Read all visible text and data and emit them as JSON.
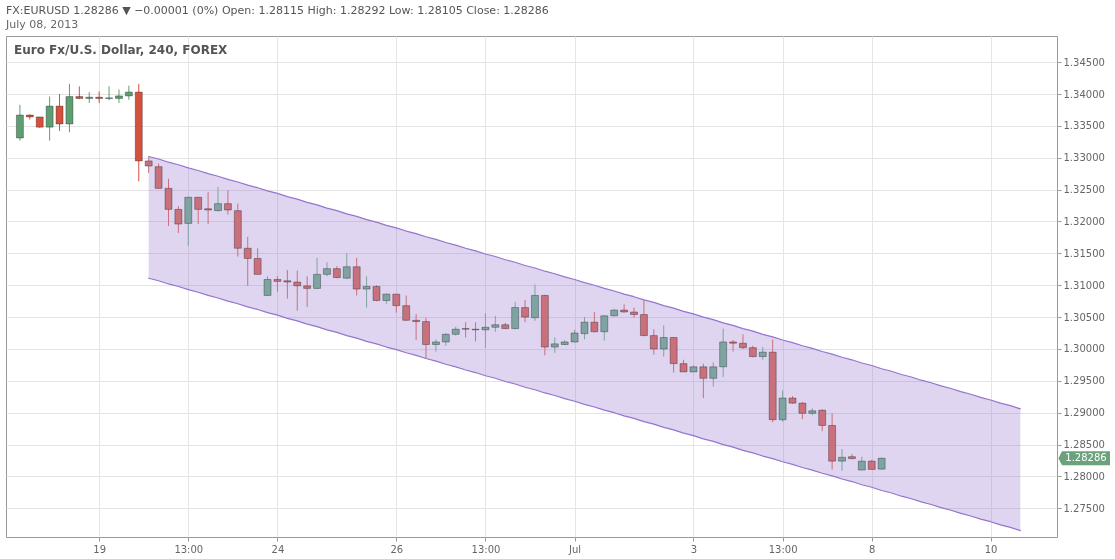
{
  "chart_data": {
    "type": "candlestick",
    "title": "FX:EURUSD 1.28286 ▼ −0.00001 (0%) Open: 1.28115 High: 1.28292 Low: 1.28105 Close: 1.28286",
    "subtitle": "July 08, 2013",
    "annotations": [
      "Euro Fx/U.S. Dollar, 240, FOREX",
      "1.28286"
    ],
    "categories": [
      null,
      null,
      null,
      null,
      null,
      null,
      null,
      null,
      "19",
      null,
      null,
      null,
      null,
      null,
      null,
      null,
      null,
      "13:00",
      null,
      null,
      null,
      null,
      null,
      null,
      null,
      null,
      "24",
      null,
      null,
      null,
      null,
      null,
      null,
      null,
      null,
      null,
      null,
      null,
      "26",
      null,
      null,
      null,
      null,
      null,
      null,
      null,
      null,
      "13:00",
      null,
      null,
      null,
      null,
      null,
      null,
      null,
      null,
      "Jul",
      null,
      null,
      null,
      null,
      null,
      null,
      null,
      null,
      null,
      null,
      null,
      "3",
      null,
      null,
      null,
      null,
      null,
      null,
      null,
      null,
      "13:00",
      null,
      null,
      null,
      null,
      null,
      null,
      null,
      null,
      "8",
      null,
      null,
      null,
      null,
      null,
      null,
      null,
      null,
      null,
      null,
      null,
      "10",
      null,
      null,
      null,
      null,
      null
    ],
    "ohlc": [
      [
        1.3331,
        1.3383,
        1.3327,
        1.3367
      ],
      [
        1.3367,
        1.3368,
        1.336,
        1.3364
      ],
      [
        1.3364,
        1.3364,
        1.3347,
        1.3348
      ],
      [
        1.3348,
        1.3396,
        1.3327,
        1.3381
      ],
      [
        1.3381,
        1.34,
        1.3342,
        1.3353
      ],
      [
        1.3353,
        1.3416,
        1.334,
        1.3396
      ],
      [
        1.3396,
        1.3412,
        1.3392,
        1.3393
      ],
      [
        1.3393,
        1.3403,
        1.3386,
        1.3395
      ],
      [
        1.3395,
        1.3404,
        1.3386,
        1.3393
      ],
      [
        1.3393,
        1.3412,
        1.339,
        1.3394
      ],
      [
        1.3393,
        1.3407,
        1.3386,
        1.3397
      ],
      [
        1.3397,
        1.3413,
        1.3391,
        1.3403
      ],
      [
        1.3403,
        1.3416,
        1.3263,
        1.3295
      ],
      [
        1.3295,
        1.3301,
        1.3276,
        1.3287
      ],
      [
        1.3286,
        1.3291,
        1.3251,
        1.3252
      ],
      [
        1.3252,
        1.3267,
        1.3193,
        1.3219
      ],
      [
        1.3219,
        1.3224,
        1.3182,
        1.3196
      ],
      [
        1.3197,
        1.3238,
        1.3162,
        1.3238
      ],
      [
        1.3238,
        1.3238,
        1.3196,
        1.3219
      ],
      [
        1.322,
        1.3246,
        1.3196,
        1.3218
      ],
      [
        1.3217,
        1.3254,
        1.3216,
        1.3228
      ],
      [
        1.3228,
        1.3249,
        1.3211,
        1.3218
      ],
      [
        1.3217,
        1.3228,
        1.3145,
        1.3158
      ],
      [
        1.3158,
        1.3176,
        1.3099,
        1.3142
      ],
      [
        1.3142,
        1.3158,
        1.3117,
        1.3117
      ],
      [
        1.3084,
        1.3114,
        1.3083,
        1.3109
      ],
      [
        1.3109,
        1.3114,
        1.309,
        1.3106
      ],
      [
        1.3107,
        1.3124,
        1.3079,
        1.3105
      ],
      [
        1.3105,
        1.3123,
        1.306,
        1.3099
      ],
      [
        1.3099,
        1.3114,
        1.3066,
        1.3095
      ],
      [
        1.3095,
        1.3143,
        1.3094,
        1.3117
      ],
      [
        1.3117,
        1.3136,
        1.3114,
        1.3126
      ],
      [
        1.3126,
        1.313,
        1.3111,
        1.3112
      ],
      [
        1.3111,
        1.315,
        1.311,
        1.3129
      ],
      [
        1.3129,
        1.3143,
        1.3084,
        1.3094
      ],
      [
        1.3094,
        1.3114,
        1.3065,
        1.3098
      ],
      [
        1.3098,
        1.31,
        1.3075,
        1.3076
      ],
      [
        1.3076,
        1.3087,
        1.3071,
        1.3086
      ],
      [
        1.3086,
        1.3086,
        1.3057,
        1.3068
      ],
      [
        1.3068,
        1.3084,
        1.3044,
        1.3045
      ],
      [
        1.3045,
        1.3055,
        1.3014,
        1.3043
      ],
      [
        1.3043,
        1.3049,
        1.2985,
        1.3007
      ],
      [
        1.3007,
        1.3015,
        1.2996,
        1.3011
      ],
      [
        1.3011,
        1.3025,
        1.3005,
        1.3023
      ],
      [
        1.3023,
        1.3035,
        1.3021,
        1.3031
      ],
      [
        1.3032,
        1.3042,
        1.3018,
        1.3031
      ],
      [
        1.3031,
        1.3042,
        1.3012,
        1.303
      ],
      [
        1.303,
        1.3056,
        1.3002,
        1.3034
      ],
      [
        1.3034,
        1.3052,
        1.3027,
        1.3038
      ],
      [
        1.3038,
        1.3041,
        1.3031,
        1.3032
      ],
      [
        1.3032,
        1.3074,
        1.3031,
        1.3065
      ],
      [
        1.3065,
        1.3077,
        1.3042,
        1.305
      ],
      [
        1.3049,
        1.3101,
        1.3044,
        1.3084
      ],
      [
        1.3084,
        1.3085,
        1.299,
        1.3003
      ],
      [
        1.3003,
        1.3018,
        1.2994,
        1.3008
      ],
      [
        1.3007,
        1.3014,
        1.3006,
        1.3011
      ],
      [
        1.3011,
        1.303,
        1.301,
        1.3025
      ],
      [
        1.3024,
        1.305,
        1.3015,
        1.3042
      ],
      [
        1.3042,
        1.3058,
        1.3026,
        1.3027
      ],
      [
        1.3027,
        1.3053,
        1.3013,
        1.3052
      ],
      [
        1.3052,
        1.3063,
        1.3051,
        1.3061
      ],
      [
        1.3061,
        1.307,
        1.3057,
        1.3058
      ],
      [
        1.3058,
        1.3065,
        1.3049,
        1.3054
      ],
      [
        1.3054,
        1.3077,
        1.302,
        1.3021
      ],
      [
        1.3021,
        1.3031,
        1.2991,
        1.3
      ],
      [
        1.3,
        1.3037,
        1.2988,
        1.3018
      ],
      [
        1.3018,
        1.3018,
        1.2963,
        1.2977
      ],
      [
        1.2977,
        1.2983,
        1.2964,
        1.2964
      ],
      [
        1.2964,
        1.2974,
        1.2964,
        1.2972
      ],
      [
        1.2972,
        1.2977,
        1.2923,
        1.2954
      ],
      [
        1.2954,
        1.2979,
        1.2941,
        1.2972
      ],
      [
        1.2972,
        1.3032,
        1.2956,
        1.3011
      ],
      [
        1.3011,
        1.3014,
        1.2996,
        1.3009
      ],
      [
        1.3009,
        1.3023,
        1.3,
        1.3002
      ],
      [
        1.3002,
        1.3005,
        1.2987,
        1.2988
      ],
      [
        1.2988,
        1.3003,
        1.2983,
        1.2995
      ],
      [
        1.2995,
        1.3015,
        1.2885,
        1.2889
      ],
      [
        1.2889,
        1.2935,
        1.2886,
        1.2923
      ],
      [
        1.2923,
        1.2926,
        1.2914,
        1.2915
      ],
      [
        1.2915,
        1.2917,
        1.289,
        1.2899
      ],
      [
        1.2899,
        1.2907,
        1.2896,
        1.2903
      ],
      [
        1.2904,
        1.2905,
        1.2871,
        1.288
      ],
      [
        1.288,
        1.2899,
        1.2811,
        1.2824
      ],
      [
        1.2824,
        1.2843,
        1.2809,
        1.283
      ],
      [
        1.2831,
        1.2835,
        1.2827,
        1.2828
      ],
      [
        1.281,
        1.2831,
        1.281,
        1.2824
      ],
      [
        1.2824,
        1.2826,
        1.2811,
        1.2811
      ],
      [
        1.28115,
        1.28292,
        1.28105,
        1.28286
      ],
      null,
      null,
      null,
      null,
      null,
      null,
      null,
      null,
      null,
      null,
      null,
      null,
      null,
      null,
      null,
      null
    ],
    "colors": [
      "#5e9e72",
      "#d6503e",
      "#d6503e",
      "#5e9e72",
      "#d6503e",
      "#5e9e72",
      "#d6503e",
      "#5e9e72",
      "#d6503e",
      "#5e9e72",
      "#5e9e72",
      "#5e9e72",
      "#d6503e",
      "#c8707c",
      "#c8707c",
      "#c8707c",
      "#c8707c",
      "#7fa3a1",
      "#c8707c",
      "#c8707c",
      "#7fa3a1",
      "#c8707c",
      "#c8707c",
      "#c8707c",
      "#c8707c",
      "#7fa3a1",
      "#c8707c",
      "#c8707c",
      "#c8707c",
      "#c8707c",
      "#7fa3a1",
      "#7fa3a1",
      "#c8707c",
      "#7fa3a1",
      "#c8707c",
      "#7fa3a1",
      "#c8707c",
      "#7fa3a1",
      "#c8707c",
      "#c8707c",
      "#c8707c",
      "#c8707c",
      "#7fa3a1",
      "#7fa3a1",
      "#7fa3a1",
      "#c8707c",
      "#c8707c",
      "#7fa3a1",
      "#7fa3a1",
      "#c8707c",
      "#7fa3a1",
      "#c8707c",
      "#7fa3a1",
      "#c8707c",
      "#7fa3a1",
      "#7fa3a1",
      "#7fa3a1",
      "#7fa3a1",
      "#c8707c",
      "#7fa3a1",
      "#7fa3a1",
      "#c8707c",
      "#c8707c",
      "#c8707c",
      "#c8707c",
      "#7fa3a1",
      "#c8707c",
      "#c8707c",
      "#7fa3a1",
      "#c8707c",
      "#7fa3a1",
      "#7fa3a1",
      "#c8707c",
      "#c8707c",
      "#c8707c",
      "#7fa3a1",
      "#c8707c",
      "#7fa3a1",
      "#c8707c",
      "#c8707c",
      "#7fa3a1",
      "#c8707c",
      "#c8707c",
      "#7fa3a1",
      "#c8707c",
      "#7fa3a1",
      "#c8707c",
      "#7fa3a1",
      null,
      null,
      null,
      null,
      null,
      null,
      null,
      null,
      null,
      null,
      null,
      null,
      null,
      null,
      null,
      null
    ],
    "series": [
      {
        "type": "line",
        "color": "#9575cd",
        "line_style": "solid",
        "values": [
          null,
          null,
          null,
          null,
          null,
          null,
          null,
          null,
          null,
          null,
          null,
          null,
          null,
          1.3302,
          1.3298,
          1.3293,
          1.3289,
          1.3284,
          1.328,
          1.3275,
          1.3271,
          1.3266,
          1.3262,
          1.3257,
          1.3253,
          1.3248,
          1.3244,
          1.3239,
          1.3235,
          1.323,
          1.3226,
          1.3221,
          1.3217,
          1.3212,
          1.3208,
          1.3203,
          1.3199,
          1.3194,
          1.319,
          1.3185,
          1.3181,
          1.3176,
          1.3172,
          1.3167,
          1.3163,
          1.3158,
          1.3154,
          1.3149,
          1.3145,
          1.314,
          1.3136,
          1.3131,
          1.3127,
          1.3122,
          1.3118,
          1.3113,
          1.3109,
          1.3104,
          1.31,
          1.3095,
          1.3091,
          1.3086,
          1.3082,
          1.3077,
          1.3073,
          1.3068,
          1.3064,
          1.3059,
          1.3055,
          1.305,
          1.3046,
          1.3041,
          1.3037,
          1.3032,
          1.3028,
          1.3023,
          1.3019,
          1.3014,
          1.301,
          1.3005,
          1.3001,
          1.2996,
          1.2992,
          1.2987,
          1.2983,
          1.2978,
          1.2974,
          1.2969,
          1.2965,
          1.296,
          1.2956,
          1.2951,
          1.2947,
          1.2942,
          1.2938,
          1.2933,
          1.2929,
          1.2924,
          1.292,
          1.2915,
          1.2911,
          1.2906,
          null,
          null
        ],
        "upper": [
          null,
          null,
          null,
          null,
          null,
          null,
          null,
          null,
          null,
          null,
          null,
          null,
          null,
          1.3302,
          1.3298,
          1.3293,
          1.3289,
          1.3284,
          1.328,
          1.3275,
          1.3271,
          1.3266,
          1.3262,
          1.3257,
          1.3253,
          1.3248,
          1.3244,
          1.3239,
          1.3235,
          1.323,
          1.3226,
          1.3221,
          1.3217,
          1.3212,
          1.3208,
          1.3203,
          1.3199,
          1.3194,
          1.319,
          1.3185,
          1.3181,
          1.3176,
          1.3172,
          1.3167,
          1.3163,
          1.3158,
          1.3154,
          1.3149,
          1.3145,
          1.314,
          1.3136,
          1.3131,
          1.3127,
          1.3122,
          1.3118,
          1.3113,
          1.3109,
          1.3104,
          1.31,
          1.3095,
          1.3091,
          1.3086,
          1.3082,
          1.3077,
          1.3073,
          1.3068,
          1.3064,
          1.3059,
          1.3055,
          1.305,
          1.3046,
          1.3041,
          1.3037,
          1.3032,
          1.3028,
          1.3023,
          1.3019,
          1.3014,
          1.301,
          1.3005,
          1.3001,
          1.2996,
          1.2992,
          1.2987,
          1.2983,
          1.2978,
          1.2974,
          1.2969,
          1.2965,
          1.296,
          1.2956,
          1.2951,
          1.2947,
          1.2942,
          1.2938,
          1.2933,
          1.2929,
          1.2924,
          1.292,
          1.2915,
          1.2911,
          1.2906,
          null,
          null
        ],
        "lower": [
          null,
          null,
          null,
          null,
          null,
          null,
          null,
          null,
          null,
          null,
          null,
          null,
          null,
          1.3111,
          1.3107,
          1.3102,
          1.3098,
          1.3093,
          1.3089,
          1.3084,
          1.308,
          1.3075,
          1.3071,
          1.3066,
          1.3062,
          1.3057,
          1.3053,
          1.3048,
          1.3044,
          1.3039,
          1.3035,
          1.303,
          1.3026,
          1.3021,
          1.3017,
          1.3012,
          1.3008,
          1.3003,
          1.2999,
          1.2994,
          1.299,
          1.2985,
          1.2981,
          1.2976,
          1.2972,
          1.2967,
          1.2963,
          1.2958,
          1.2954,
          1.2949,
          1.2945,
          1.294,
          1.2936,
          1.2931,
          1.2927,
          1.2922,
          1.2918,
          1.2913,
          1.2909,
          1.2904,
          1.29,
          1.2895,
          1.2891,
          1.2886,
          1.2882,
          1.2877,
          1.2873,
          1.2868,
          1.2864,
          1.2859,
          1.2855,
          1.285,
          1.2846,
          1.2841,
          1.2837,
          1.2832,
          1.2828,
          1.2823,
          1.2819,
          1.2814,
          1.281,
          1.2805,
          1.2801,
          1.2796,
          1.2792,
          1.2787,
          1.2783,
          1.2778,
          1.2774,
          1.2769,
          1.2765,
          1.276,
          1.2756,
          1.2751,
          1.2747,
          1.2742,
          1.2738,
          1.2733,
          1.2729,
          1.2724,
          1.272,
          1.2715,
          null,
          null
        ]
      },
      {
        "type": "line",
        "color": "#9575cd",
        "line_style": "solid",
        "values": [
          null,
          null,
          null,
          null,
          null,
          null,
          null,
          null,
          null,
          null,
          null,
          null,
          null,
          1.3111,
          1.3107,
          1.3102,
          1.3098,
          1.3093,
          1.3089,
          1.3084,
          1.308,
          1.3075,
          1.3071,
          1.3066,
          1.3062,
          1.3057,
          1.3053,
          1.3048,
          1.3044,
          1.3039,
          1.3035,
          1.303,
          1.3026,
          1.3021,
          1.3017,
          1.3012,
          1.3008,
          1.3003,
          1.2999,
          1.2994,
          1.299,
          1.2985,
          1.2981,
          1.2976,
          1.2972,
          1.2967,
          1.2963,
          1.2958,
          1.2954,
          1.2949,
          1.2945,
          1.294,
          1.2936,
          1.2931,
          1.2927,
          1.2922,
          1.2918,
          1.2913,
          1.2909,
          1.2904,
          1.29,
          1.2895,
          1.2891,
          1.2886,
          1.2882,
          1.2877,
          1.2873,
          1.2868,
          1.2864,
          1.2859,
          1.2855,
          1.285,
          1.2846,
          1.2841,
          1.2837,
          1.2832,
          1.2828,
          1.2823,
          1.2819,
          1.2814,
          1.281,
          1.2805,
          1.2801,
          1.2796,
          1.2792,
          1.2787,
          1.2783,
          1.2778,
          1.2774,
          1.2769,
          1.2765,
          1.276,
          1.2756,
          1.2751,
          1.2747,
          1.2742,
          1.2738,
          1.2733,
          1.2729,
          1.2724,
          1.272,
          1.2715,
          null,
          null
        ]
      }
    ],
    "ylim": [
      1.2705,
      1.3491
    ],
    "yticks": [
      {
        "value": 1.275,
        "label": "1.27500"
      },
      {
        "value": 1.28,
        "label": "1.28000"
      },
      {
        "value": 1.285,
        "label": "1.28500"
      },
      {
        "value": 1.29,
        "label": "1.29000"
      },
      {
        "value": 1.295,
        "label": "1.29500"
      },
      {
        "value": 1.3,
        "label": "1.30000"
      },
      {
        "value": 1.305,
        "label": "1.30500"
      },
      {
        "value": 1.31,
        "label": "1.31000"
      },
      {
        "value": 1.315,
        "label": "1.31500"
      },
      {
        "value": 1.32,
        "label": "1.32000"
      },
      {
        "value": 1.325,
        "label": "1.32500"
      },
      {
        "value": 1.33,
        "label": "1.33000"
      },
      {
        "value": 1.335,
        "label": "1.33500"
      },
      {
        "value": 1.34,
        "label": "1.34000"
      },
      {
        "value": 1.345,
        "label": "1.34500"
      }
    ],
    "grid": true
  }
}
